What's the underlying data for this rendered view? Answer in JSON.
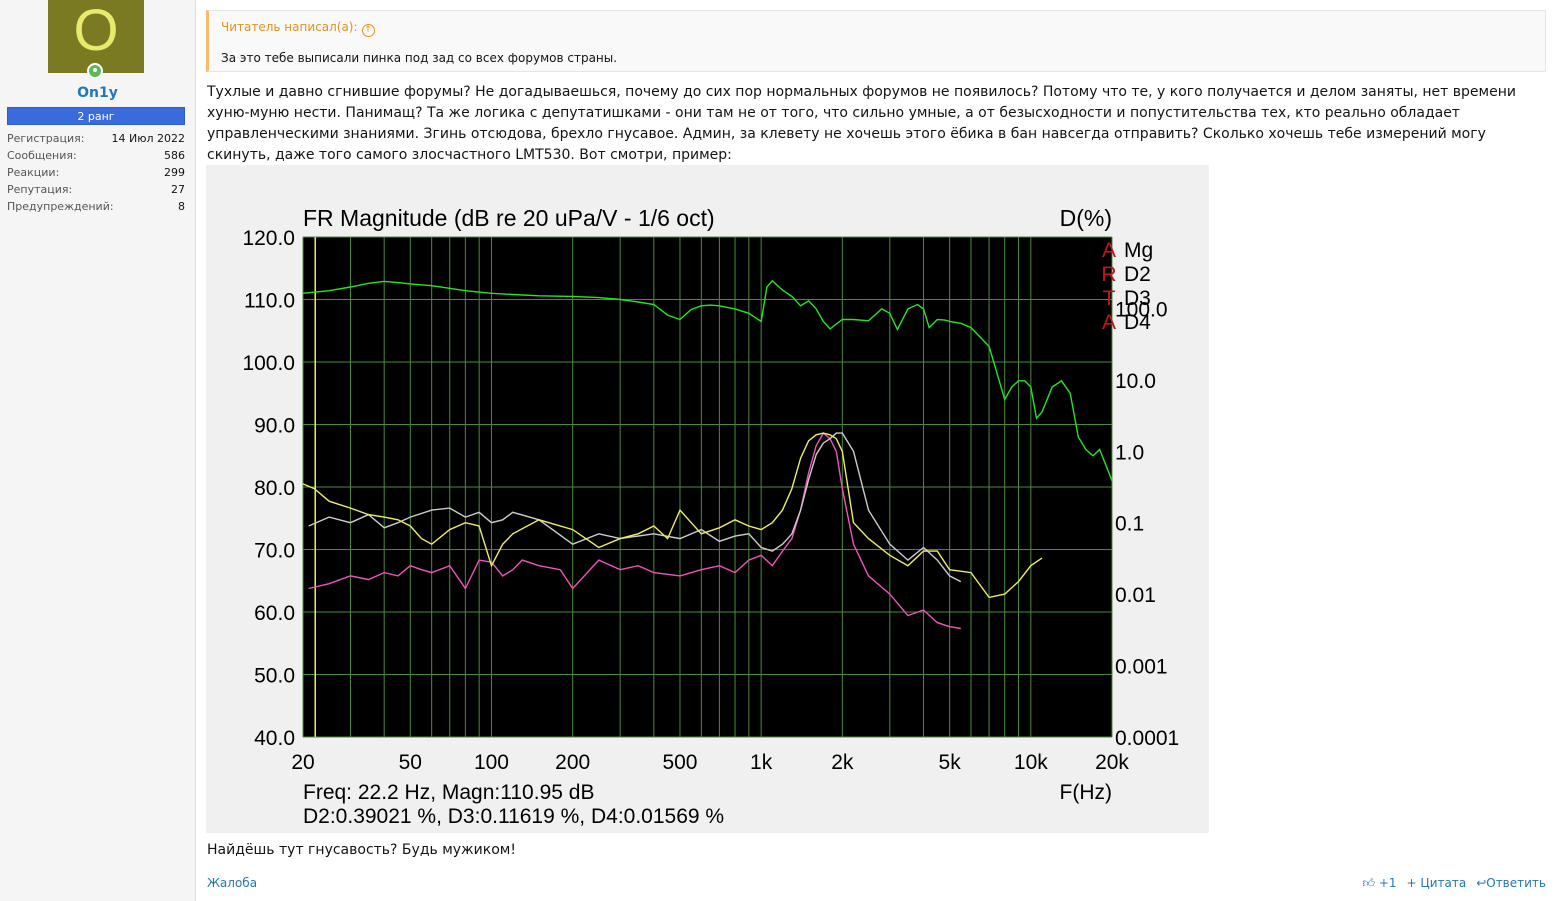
{
  "user": {
    "avatar_letter": "O",
    "name": "On1y",
    "rank": "2 ранг",
    "stats": [
      {
        "label": "Регистрация:",
        "value": "14 Июл 2022"
      },
      {
        "label": "Сообщения:",
        "value": "586"
      },
      {
        "label": "Реакции:",
        "value": "299"
      },
      {
        "label": "Репутация:",
        "value": "27"
      },
      {
        "label": "Предупреждений:",
        "value": "8"
      }
    ]
  },
  "quote": {
    "author": "Читатель написал(а):",
    "text": "За это тебе выписали пинка под зад со всех форумов страны."
  },
  "message": {
    "text": "Тухлые и давно сгнившие форумы? Не догадываешься, почему до сих пор нормальных форумов не появилось? Потому что те, у кого получается и делом заняты, нет времени хуню-муню нести. Панимащ? Та же логика с депутатишками - они там не от того, что сильно умные, а от безысходности и попустительства тех, кто реально обладает управленческими знаниями. Згинь отсюдова, брехло гнусавое. Админ, за клевету не хочешь этого ёбика в бан навсегда отправить? Сколько хочешь тебе измерений могу скинуть, даже того самого злосчастного LMT530. Вот смотри, пример:",
    "closing": "Найдёшь тут гнусавость? Будь мужиком!"
  },
  "footer": {
    "report": "Жалоба",
    "like": "+1",
    "quote": "+ Цитата",
    "reply": "Ответить"
  },
  "chart_data": {
    "type": "line",
    "title": "FR Magnitude (dB re 20 uPa/V - 1/6 oct)",
    "y2_title": "D(%)",
    "xlabel": "F(Hz)",
    "x_scale": "log",
    "xlim": [
      20,
      20000
    ],
    "ylim": [
      40,
      120
    ],
    "x_ticks": [
      "20",
      "50",
      "100",
      "200",
      "500",
      "1k",
      "2k",
      "5k",
      "10k",
      "20k"
    ],
    "y_ticks": [
      "120.0",
      "110.0",
      "100.0",
      "90.0",
      "80.0",
      "70.0",
      "60.0",
      "50.0",
      "40.0"
    ],
    "y2_ticks": [
      "100.0",
      "10.0",
      "1.0",
      "0.1",
      "0.01",
      "0.001",
      "0.0001"
    ],
    "legend": [
      "Mg",
      "D2",
      "D3",
      "D4"
    ],
    "logo_letters": [
      "A",
      "R",
      "T",
      "A"
    ],
    "readout_line1": "Freq: 22.2 Hz, Magn:110.95 dB",
    "readout_line2": "D2:0.39021 %, D3:0.11619 %, D4:0.01569 %",
    "grid": true,
    "background": "#000000",
    "series": [
      {
        "name": "Mg",
        "color": "#22e622",
        "axis": "left",
        "x": [
          20,
          25,
          30,
          35,
          40,
          45,
          50,
          60,
          70,
          80,
          100,
          120,
          150,
          200,
          250,
          300,
          350,
          400,
          450,
          500,
          550,
          600,
          650,
          700,
          800,
          900,
          1000,
          1050,
          1100,
          1200,
          1300,
          1400,
          1500,
          1600,
          1700,
          1800,
          2000,
          2200,
          2500,
          2800,
          3000,
          3200,
          3500,
          3800,
          4000,
          4200,
          4500,
          4800,
          5000,
          5500,
          6000,
          7000,
          8000,
          8500,
          9000,
          9500,
          10000,
          10500,
          11000,
          12000,
          13000,
          14000,
          15000,
          16000,
          17000,
          18000,
          20000
        ],
        "y": [
          111,
          111.4,
          112,
          112.6,
          112.9,
          112.7,
          112.5,
          112.2,
          111.8,
          111.4,
          111,
          110.8,
          110.6,
          110.5,
          110.3,
          110,
          109.6,
          109.2,
          107.5,
          106.8,
          108.4,
          109,
          109.1,
          109,
          108.5,
          107.8,
          106.5,
          112,
          113,
          111.5,
          110.5,
          109,
          109.8,
          108.5,
          106.5,
          105.3,
          106.8,
          106.8,
          106.6,
          108.5,
          107.8,
          105.2,
          108.5,
          109.2,
          108.5,
          105.5,
          106.8,
          106.7,
          106.5,
          106.2,
          105.5,
          102.5,
          94,
          96,
          97,
          97,
          96,
          91,
          92,
          96,
          97,
          95,
          88,
          86,
          85,
          86,
          81
        ]
      },
      {
        "name": "D2",
        "color": "#ee55bb",
        "axis": "right",
        "x": [
          21,
          25,
          30,
          35,
          40,
          45,
          50,
          55,
          60,
          70,
          80,
          90,
          100,
          110,
          120,
          130,
          150,
          180,
          200,
          250,
          300,
          350,
          400,
          500,
          600,
          700,
          800,
          900,
          1000,
          1100,
          1200,
          1300,
          1400,
          1500,
          1600,
          1700,
          1800,
          1900,
          2000,
          2200,
          2500,
          3000,
          3500,
          4000,
          4500,
          5000,
          5500
        ],
        "y": [
          0.012,
          0.014,
          0.018,
          0.016,
          0.02,
          0.018,
          0.025,
          0.022,
          0.02,
          0.025,
          0.012,
          0.03,
          0.028,
          0.018,
          0.022,
          0.03,
          0.025,
          0.022,
          0.012,
          0.03,
          0.022,
          0.025,
          0.02,
          0.018,
          0.022,
          0.025,
          0.02,
          0.03,
          0.035,
          0.025,
          0.04,
          0.06,
          0.15,
          0.5,
          1.2,
          1.8,
          1.5,
          1.0,
          0.3,
          0.05,
          0.018,
          0.01,
          0.005,
          0.006,
          0.004,
          0.0035,
          0.0033
        ]
      },
      {
        "name": "D3",
        "color": "#cccccc",
        "axis": "right",
        "x": [
          21,
          25,
          30,
          35,
          40,
          45,
          50,
          60,
          70,
          80,
          90,
          100,
          110,
          120,
          150,
          200,
          250,
          300,
          400,
          500,
          600,
          700,
          800,
          900,
          1000,
          1100,
          1200,
          1300,
          1400,
          1500,
          1600,
          1700,
          1800,
          1900,
          2000,
          2200,
          2500,
          3000,
          3500,
          4000,
          4500,
          5000,
          5500
        ],
        "y": [
          0.09,
          0.12,
          0.1,
          0.13,
          0.085,
          0.1,
          0.12,
          0.15,
          0.16,
          0.12,
          0.14,
          0.1,
          0.11,
          0.14,
          0.11,
          0.05,
          0.07,
          0.06,
          0.07,
          0.06,
          0.08,
          0.055,
          0.065,
          0.07,
          0.045,
          0.04,
          0.05,
          0.07,
          0.15,
          0.4,
          0.9,
          1.3,
          1.5,
          1.8,
          1.8,
          1.0,
          0.15,
          0.05,
          0.03,
          0.045,
          0.03,
          0.018,
          0.015
        ]
      },
      {
        "name": "D4",
        "color": "#eeee66",
        "axis": "right",
        "x": [
          20,
          22,
          25,
          30,
          35,
          40,
          45,
          50,
          55,
          60,
          70,
          80,
          90,
          100,
          110,
          120,
          150,
          200,
          250,
          300,
          350,
          400,
          450,
          500,
          600,
          700,
          800,
          900,
          1000,
          1100,
          1200,
          1300,
          1400,
          1500,
          1600,
          1700,
          1800,
          1900,
          2000,
          2200,
          2500,
          3000,
          3500,
          4000,
          4500,
          5000,
          6000,
          7000,
          8000,
          9000,
          10000,
          11000
        ],
        "y": [
          0.35,
          0.3,
          0.2,
          0.16,
          0.13,
          0.12,
          0.11,
          0.09,
          0.06,
          0.05,
          0.08,
          0.1,
          0.09,
          0.025,
          0.05,
          0.07,
          0.11,
          0.08,
          0.045,
          0.06,
          0.07,
          0.09,
          0.06,
          0.15,
          0.07,
          0.085,
          0.11,
          0.09,
          0.08,
          0.1,
          0.15,
          0.3,
          0.8,
          1.4,
          1.7,
          1.8,
          1.7,
          1.5,
          1.0,
          0.1,
          0.06,
          0.035,
          0.025,
          0.04,
          0.04,
          0.022,
          0.02,
          0.009,
          0.01,
          0.015,
          0.025,
          0.032
        ]
      }
    ]
  }
}
